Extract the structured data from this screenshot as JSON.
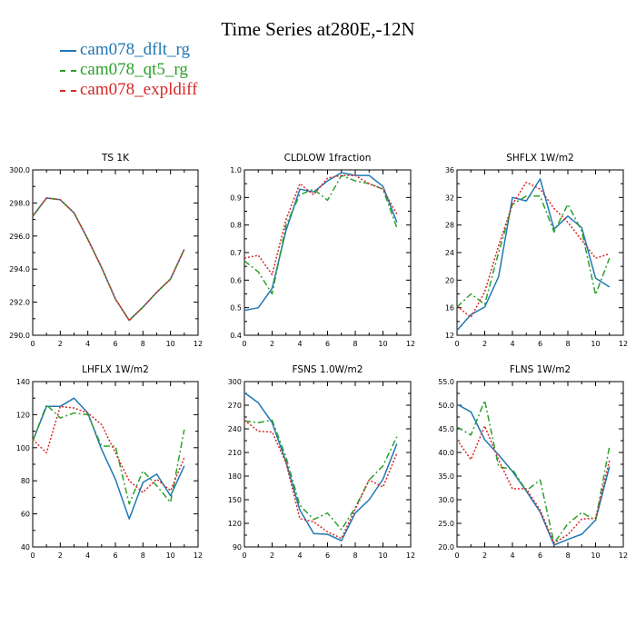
{
  "title": "Time Series at280E,-12N",
  "legend": [
    {
      "name": "cam078_dflt_rg",
      "color": "#1f77b4",
      "dash": ""
    },
    {
      "name": "cam078_qt5_rg",
      "color": "#2ca02c",
      "dash": "7,3,2,3"
    },
    {
      "name": "cam078_expldiff",
      "color": "#d62728",
      "dash": "2,2"
    }
  ],
  "chart_data": [
    {
      "type": "line",
      "title": "TS   1K",
      "xlim": [
        0,
        12
      ],
      "ylim": [
        290,
        300
      ],
      "xticks": [
        "0",
        "2",
        "4",
        "6",
        "8",
        "10",
        "12"
      ],
      "yticks": [
        "290.0",
        "292.0",
        "294.0",
        "296.0",
        "298.0",
        "300.0"
      ],
      "x": [
        0,
        1,
        2,
        3,
        4,
        5,
        6,
        7,
        8,
        9,
        10,
        11
      ],
      "series": [
        {
          "name": "cam078_dflt_rg",
          "values": [
            297.2,
            298.3,
            298.2,
            297.4,
            295.8,
            294.1,
            292.2,
            290.9,
            291.7,
            292.6,
            293.4,
            295.2
          ]
        },
        {
          "name": "cam078_qt5_rg",
          "values": [
            297.2,
            298.3,
            298.2,
            297.4,
            295.8,
            294.1,
            292.2,
            290.9,
            291.7,
            292.6,
            293.4,
            295.2
          ]
        },
        {
          "name": "cam078_expldiff",
          "values": [
            297.2,
            298.3,
            298.2,
            297.4,
            295.8,
            294.1,
            292.2,
            290.9,
            291.7,
            292.6,
            293.4,
            295.2
          ]
        }
      ]
    },
    {
      "type": "line",
      "title": "CLDLOW   1fraction",
      "xlim": [
        0,
        12
      ],
      "ylim": [
        0.4,
        1.0
      ],
      "xticks": [
        "0",
        "2",
        "4",
        "6",
        "8",
        "10",
        "12"
      ],
      "yticks": [
        "0.4",
        "0.5",
        "0.6",
        "0.7",
        "0.8",
        "0.9",
        "1.0"
      ],
      "x": [
        0,
        1,
        2,
        3,
        4,
        5,
        6,
        7,
        8,
        9,
        10,
        11
      ],
      "series": [
        {
          "name": "cam078_dflt_rg",
          "values": [
            0.49,
            0.5,
            0.57,
            0.78,
            0.93,
            0.92,
            0.96,
            0.99,
            0.98,
            0.98,
            0.94,
            0.81
          ]
        },
        {
          "name": "cam078_qt5_rg",
          "values": [
            0.67,
            0.63,
            0.55,
            0.8,
            0.91,
            0.93,
            0.89,
            0.98,
            0.96,
            0.95,
            0.93,
            0.79
          ]
        },
        {
          "name": "cam078_expldiff",
          "values": [
            0.68,
            0.69,
            0.62,
            0.82,
            0.95,
            0.91,
            0.97,
            0.98,
            0.98,
            0.95,
            0.93,
            0.84
          ]
        }
      ]
    },
    {
      "type": "line",
      "title": "SHFLX   1W/m2",
      "xlim": [
        0,
        12
      ],
      "ylim": [
        12,
        36
      ],
      "xticks": [
        "0",
        "2",
        "4",
        "6",
        "8",
        "10",
        "12"
      ],
      "yticks": [
        "12",
        "16",
        "20",
        "24",
        "28",
        "32",
        "36"
      ],
      "x": [
        0,
        1,
        2,
        3,
        4,
        5,
        6,
        7,
        8,
        9,
        10,
        11
      ],
      "series": [
        {
          "name": "cam078_dflt_rg",
          "values": [
            12.7,
            15.0,
            16.1,
            20.5,
            32.0,
            31.5,
            34.7,
            27.4,
            29.3,
            27.6,
            20.3,
            19.0
          ]
        },
        {
          "name": "cam078_qt5_rg",
          "values": [
            16.1,
            18.0,
            16.5,
            24.0,
            31.0,
            32.2,
            32.2,
            27.0,
            31.0,
            27.1,
            17.9,
            23.2
          ]
        },
        {
          "name": "cam078_expldiff",
          "values": [
            16.2,
            14.6,
            18.3,
            25.0,
            31.0,
            34.2,
            33.2,
            30.4,
            28.4,
            25.8,
            23.2,
            23.8
          ]
        }
      ]
    },
    {
      "type": "line",
      "title": "LHFLX   1W/m2",
      "xlim": [
        0,
        12
      ],
      "ylim": [
        40,
        140
      ],
      "xticks": [
        "0",
        "2",
        "4",
        "6",
        "8",
        "10",
        "12"
      ],
      "yticks": [
        "40",
        "60",
        "80",
        "100",
        "120",
        "140"
      ],
      "x": [
        0,
        1,
        2,
        3,
        4,
        5,
        6,
        7,
        8,
        9,
        10,
        11
      ],
      "series": [
        {
          "name": "cam078_dflt_rg",
          "values": [
            104,
            125,
            125,
            130,
            121,
            99,
            81,
            57,
            79,
            84,
            71,
            89
          ]
        },
        {
          "name": "cam078_qt5_rg",
          "values": [
            104,
            126,
            118,
            121,
            120,
            101,
            101,
            66,
            86,
            77,
            67,
            111
          ]
        },
        {
          "name": "cam078_expldiff",
          "values": [
            105,
            97,
            125,
            124,
            121,
            114,
            97,
            80,
            73,
            81,
            74,
            94
          ]
        }
      ]
    },
    {
      "type": "line",
      "title": "FSNS   1.0W/m2",
      "xlim": [
        0,
        12
      ],
      "ylim": [
        90,
        300
      ],
      "xticks": [
        "0",
        "2",
        "4",
        "6",
        "8",
        "10",
        "12"
      ],
      "yticks": [
        "90",
        "120",
        "150",
        "180",
        "210",
        "240",
        "270",
        "300"
      ],
      "x": [
        0,
        1,
        2,
        3,
        4,
        5,
        6,
        7,
        8,
        9,
        10,
        11
      ],
      "series": [
        {
          "name": "cam078_dflt_rg",
          "values": [
            286,
            273,
            248,
            198,
            137,
            107,
            106,
            98,
            133,
            150,
            176,
            221
          ]
        },
        {
          "name": "cam078_qt5_rg",
          "values": [
            250,
            248,
            251,
            204,
            143,
            125,
            133,
            112,
            140,
            175,
            193,
            230
          ]
        },
        {
          "name": "cam078_expldiff",
          "values": [
            251,
            237,
            236,
            197,
            126,
            122,
            109,
            101,
            138,
            175,
            166,
            209
          ]
        }
      ]
    },
    {
      "type": "line",
      "title": "FLNS   1W/m2",
      "xlim": [
        0,
        12
      ],
      "ylim": [
        20,
        55
      ],
      "xticks": [
        "0",
        "2",
        "4",
        "6",
        "8",
        "10",
        "12"
      ],
      "yticks": [
        "20.0",
        "25.0",
        "30.0",
        "35.0",
        "40.0",
        "45.0",
        "50.0",
        "55.0"
      ],
      "x": [
        0,
        1,
        2,
        3,
        4,
        5,
        6,
        7,
        8,
        9,
        10,
        11
      ],
      "series": [
        {
          "name": "cam078_dflt_rg",
          "values": [
            50.2,
            48.6,
            42.7,
            39.5,
            36.0,
            31.8,
            27.4,
            20.4,
            21.6,
            22.7,
            25.7,
            37.0
          ]
        },
        {
          "name": "cam078_qt5_rg",
          "values": [
            45.4,
            43.7,
            51.0,
            37.0,
            36.4,
            31.9,
            34.2,
            20.8,
            24.9,
            27.3,
            25.6,
            41.3
          ]
        },
        {
          "name": "cam078_expldiff",
          "values": [
            42.7,
            38.5,
            45.6,
            38.4,
            32.3,
            32.3,
            27.8,
            20.8,
            22.6,
            25.9,
            26.1,
            38.3
          ]
        }
      ]
    }
  ]
}
